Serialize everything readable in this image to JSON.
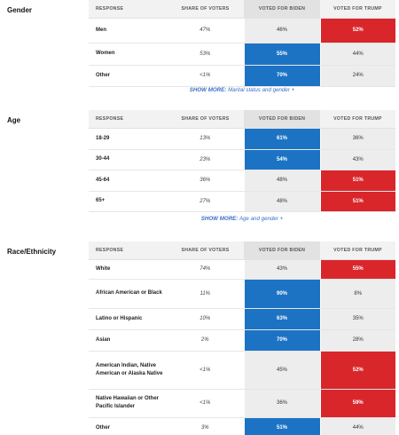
{
  "headers": {
    "response": "RESPONSE",
    "share": "SHARE OF VOTERS",
    "biden": "VOTED FOR BIDEN",
    "trump": "VOTED FOR TRUMP"
  },
  "gender": {
    "title": "Gender",
    "rows": [
      {
        "response": "Men",
        "share": "47%",
        "biden": "46%",
        "trump": "52%"
      },
      {
        "response": "Women",
        "share": "53%",
        "biden": "55%",
        "trump": "44%"
      },
      {
        "response": "Other",
        "share": "<1%",
        "biden": "70%",
        "trump": "24%"
      }
    ],
    "show_more_label": "SHOW MORE:",
    "show_more_text": "Marital status and gender +"
  },
  "age": {
    "title": "Age",
    "rows": [
      {
        "response": "18-29",
        "share": "13%",
        "biden": "61%",
        "trump": "36%"
      },
      {
        "response": "30-44",
        "share": "23%",
        "biden": "54%",
        "trump": "43%"
      },
      {
        "response": "45-64",
        "share": "36%",
        "biden": "48%",
        "trump": "51%"
      },
      {
        "response": "65+",
        "share": "27%",
        "biden": "48%",
        "trump": "51%"
      }
    ],
    "show_more_label": "SHOW MORE:",
    "show_more_text": "Age and gender +"
  },
  "race": {
    "title": "Race/Ethnicity",
    "rows": [
      {
        "response": "White",
        "share": "74%",
        "biden": "43%",
        "trump": "55%"
      },
      {
        "response": "African American or Black",
        "share": "11%",
        "biden": "90%",
        "trump": "8%"
      },
      {
        "response": "Latino or Hispanic",
        "share": "10%",
        "biden": "63%",
        "trump": "35%"
      },
      {
        "response": "Asian",
        "share": "2%",
        "biden": "70%",
        "trump": "28%"
      },
      {
        "response": "American Indian, Native American or Alaska Native",
        "share": "<1%",
        "biden": "45%",
        "trump": "52%"
      },
      {
        "response": "Native Hawaiian or Other Pacific Islander",
        "share": "<1%",
        "biden": "36%",
        "trump": "59%"
      },
      {
        "response": "Other",
        "share": "3%",
        "biden": "51%",
        "trump": "44%"
      }
    ]
  },
  "colors": {
    "biden_win": "#1c73c4",
    "trump_win": "#d9262b",
    "neutral_cell": "#ededed",
    "link": "#3a6fc4"
  }
}
